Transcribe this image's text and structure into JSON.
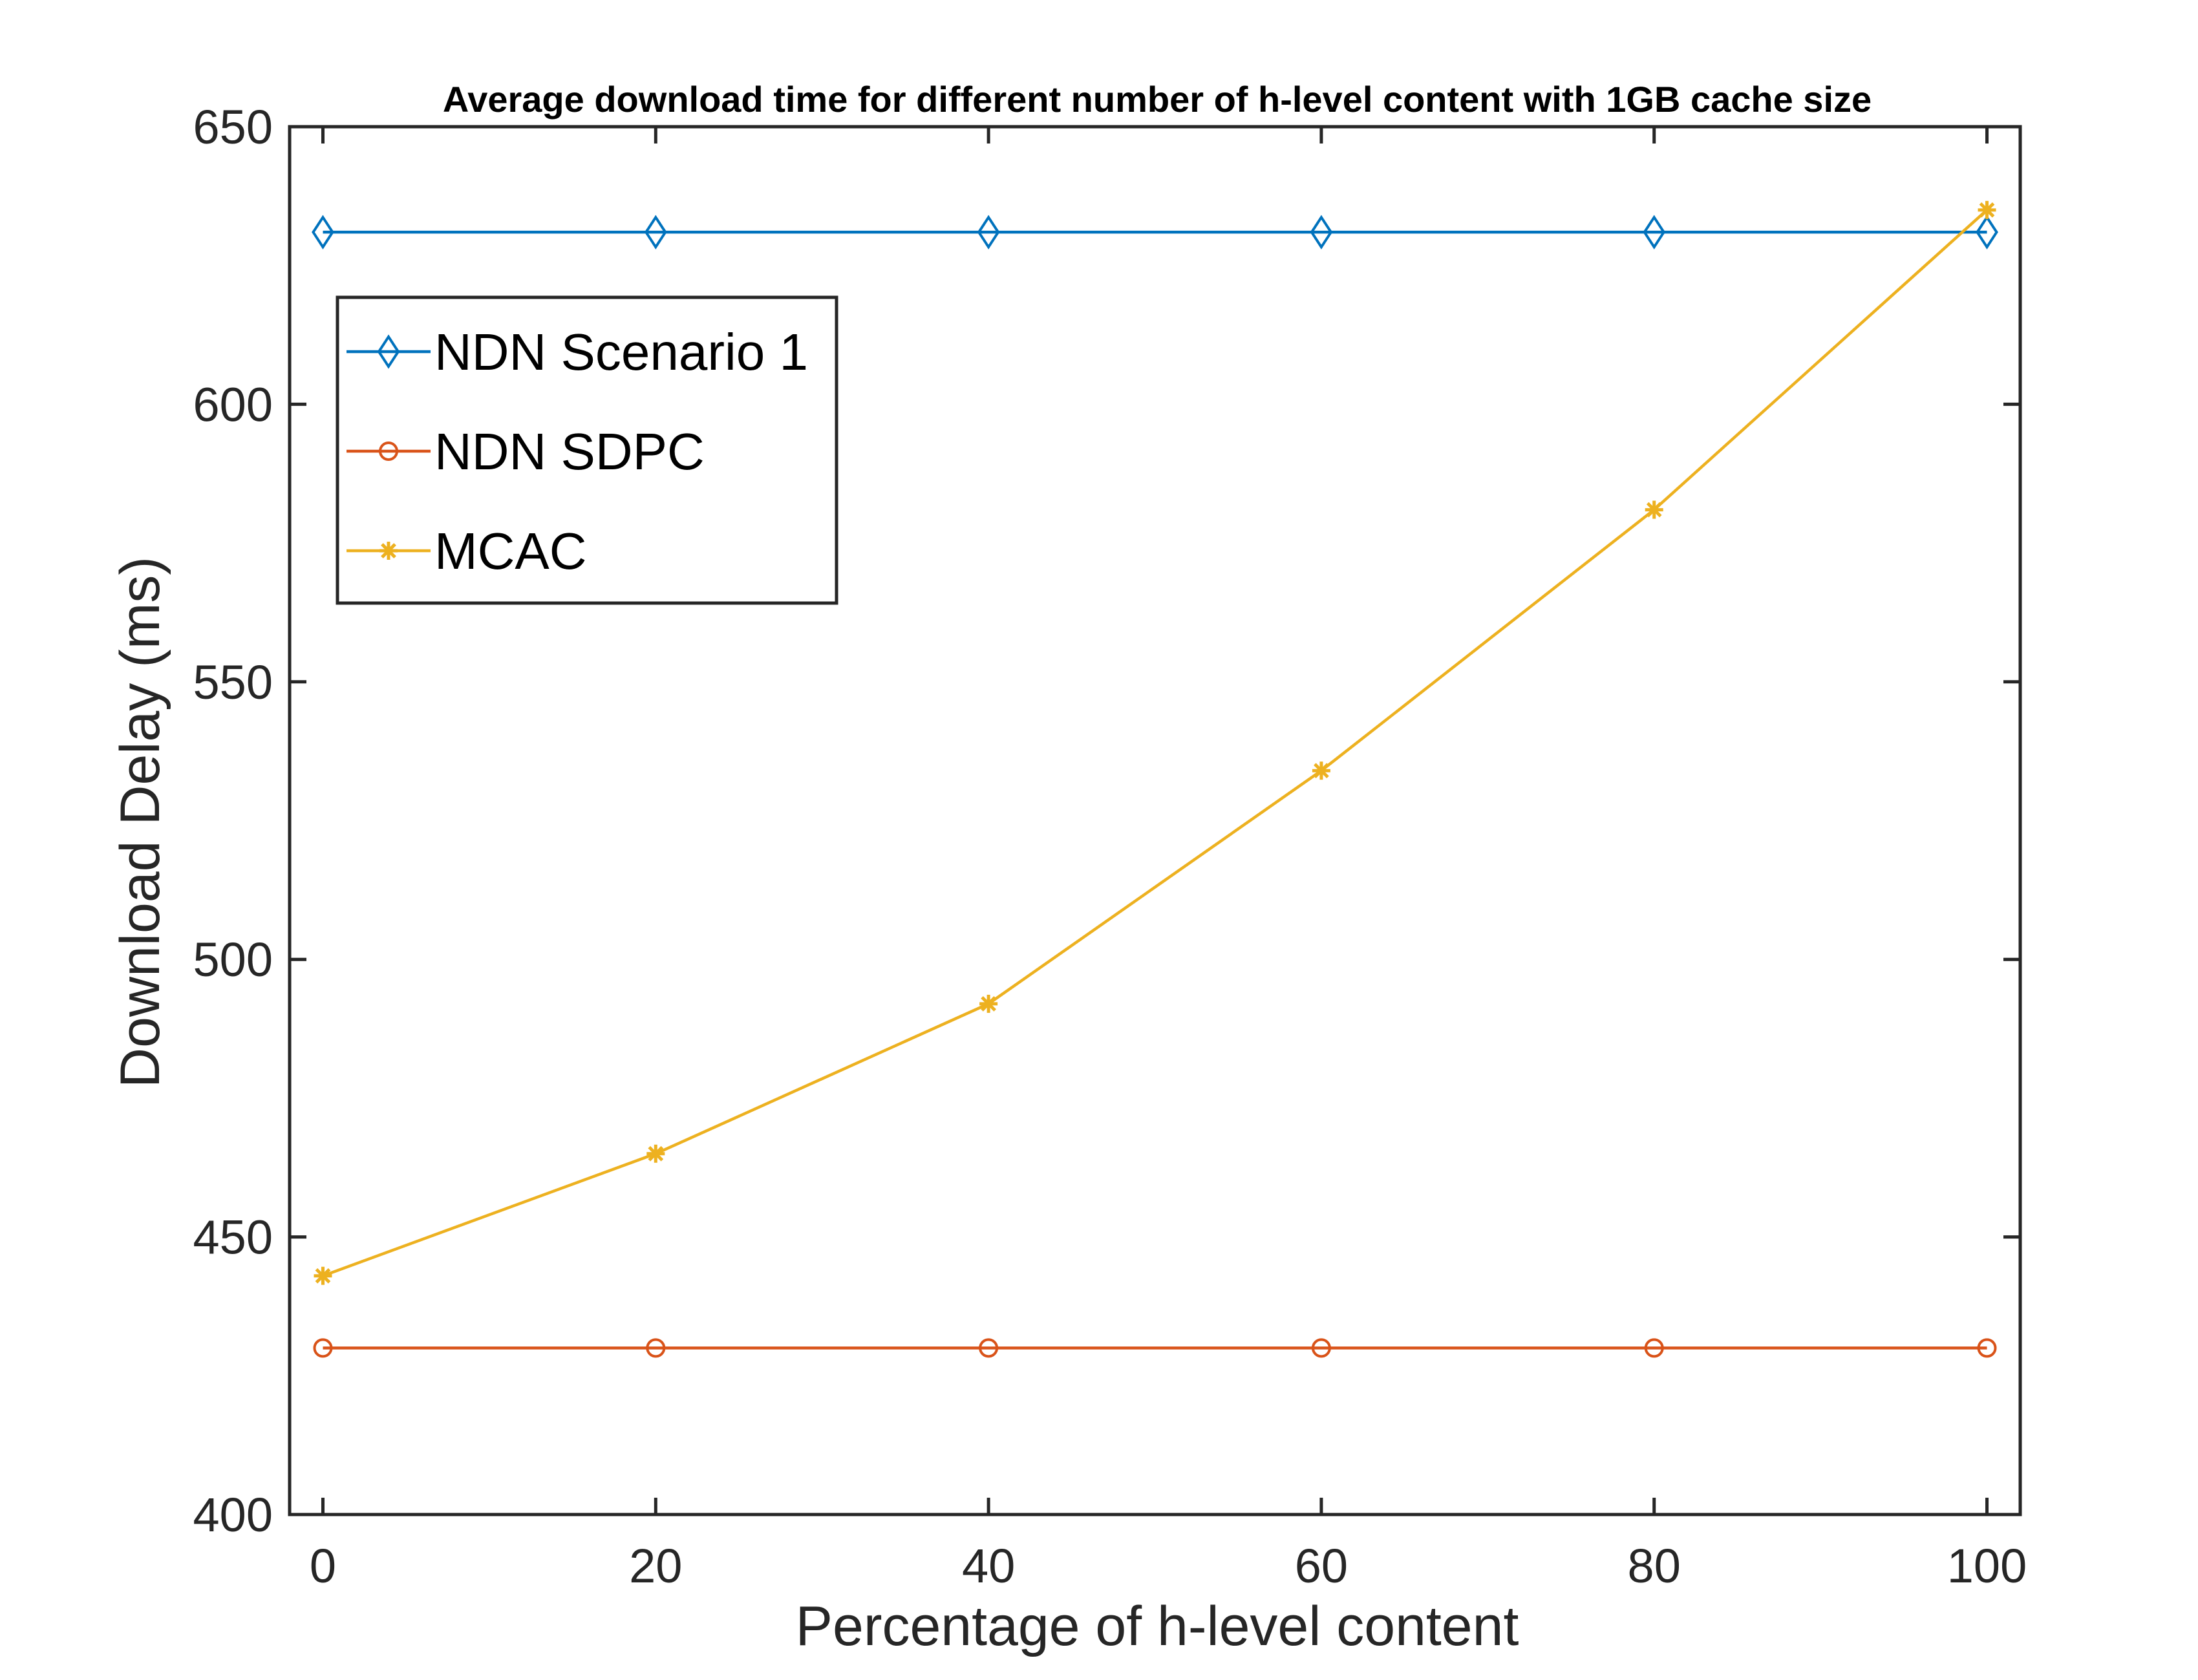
{
  "chart_data": {
    "type": "line",
    "title": "Average download time for different number of h-level content with 1GB cache size",
    "xlabel": "Percentage of h-level content",
    "ylabel": "Download Delay (ms)",
    "x": [
      0,
      20,
      40,
      60,
      80,
      100
    ],
    "xlim": [
      -2,
      102
    ],
    "ylim": [
      400,
      650
    ],
    "xticks": [
      0,
      20,
      40,
      60,
      80,
      100
    ],
    "yticks": [
      400,
      450,
      500,
      550,
      600,
      650
    ],
    "grid": false,
    "legend_position": "top-left",
    "series": [
      {
        "name": "NDN Scenario 1",
        "marker": "diamond",
        "color": "#0072BD",
        "values": [
          631,
          631,
          631,
          631,
          631,
          631
        ]
      },
      {
        "name": "NDN SDPC",
        "marker": "circle",
        "color": "#D95319",
        "values": [
          430,
          430,
          430,
          430,
          430,
          430
        ]
      },
      {
        "name": "MCAC",
        "marker": "asterisk",
        "color": "#EDB120",
        "values": [
          443,
          465,
          492,
          534,
          581,
          635
        ]
      }
    ]
  }
}
